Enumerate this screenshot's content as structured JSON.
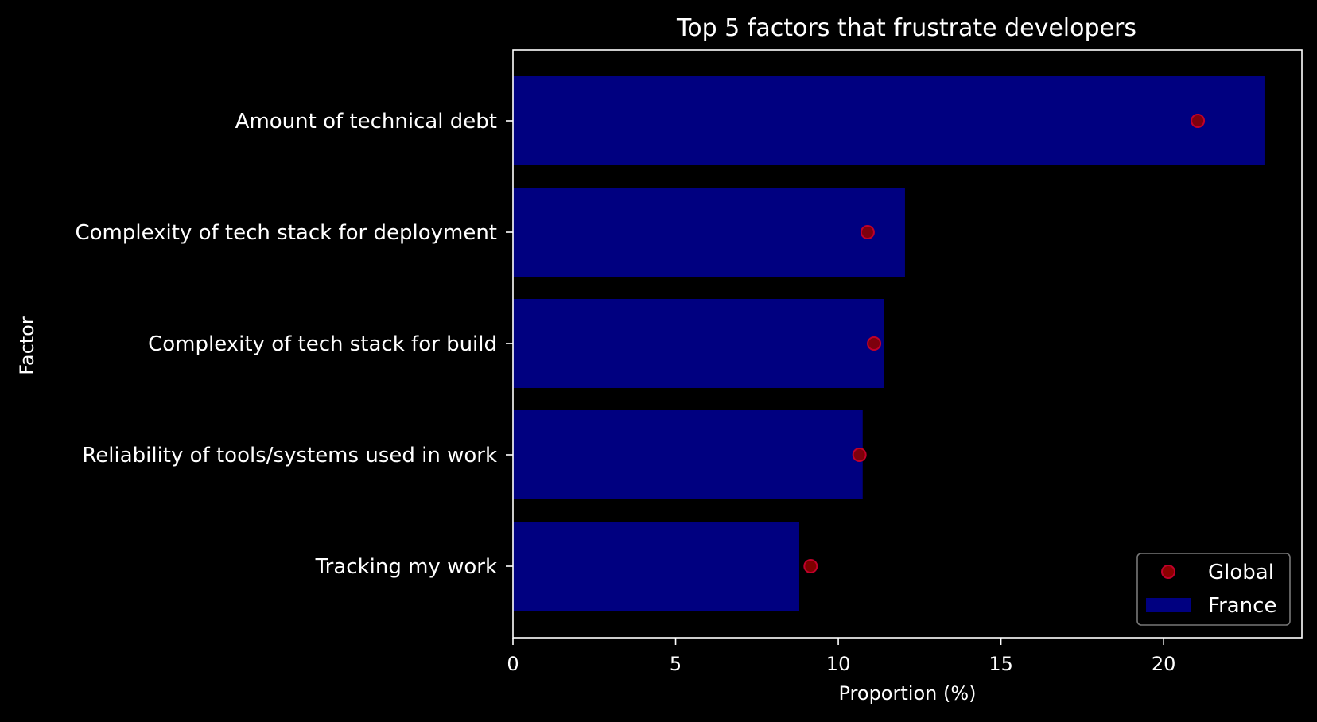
{
  "chart_data": {
    "type": "bar",
    "orientation": "horizontal",
    "title": "Top 5 factors that frustrate developers",
    "xlabel": "Proportion (%)",
    "ylabel": "Factor",
    "categories": [
      "Amount of technical debt",
      "Complexity of tech stack for deployment",
      "Complexity of tech stack for build",
      "Reliability of tools/systems used in work",
      "Tracking my work"
    ],
    "series": [
      {
        "name": "France",
        "kind": "bar",
        "color": "#000080",
        "values": [
          23.1,
          12.05,
          11.4,
          10.75,
          8.8
        ]
      },
      {
        "name": "Global",
        "kind": "point",
        "color": "#8b0000",
        "values": [
          21.05,
          10.9,
          11.1,
          10.65,
          9.15
        ]
      }
    ],
    "xlim": [
      0,
      24.25
    ],
    "xticks": [
      0,
      5,
      10,
      15,
      20
    ],
    "xtick_labels": [
      "0",
      "5",
      "10",
      "15",
      "20"
    ],
    "grid": false,
    "legend": {
      "position": "bottom-right",
      "entries": [
        "Global",
        "France"
      ]
    },
    "background": "#000000",
    "foreground": "#ffffff"
  }
}
